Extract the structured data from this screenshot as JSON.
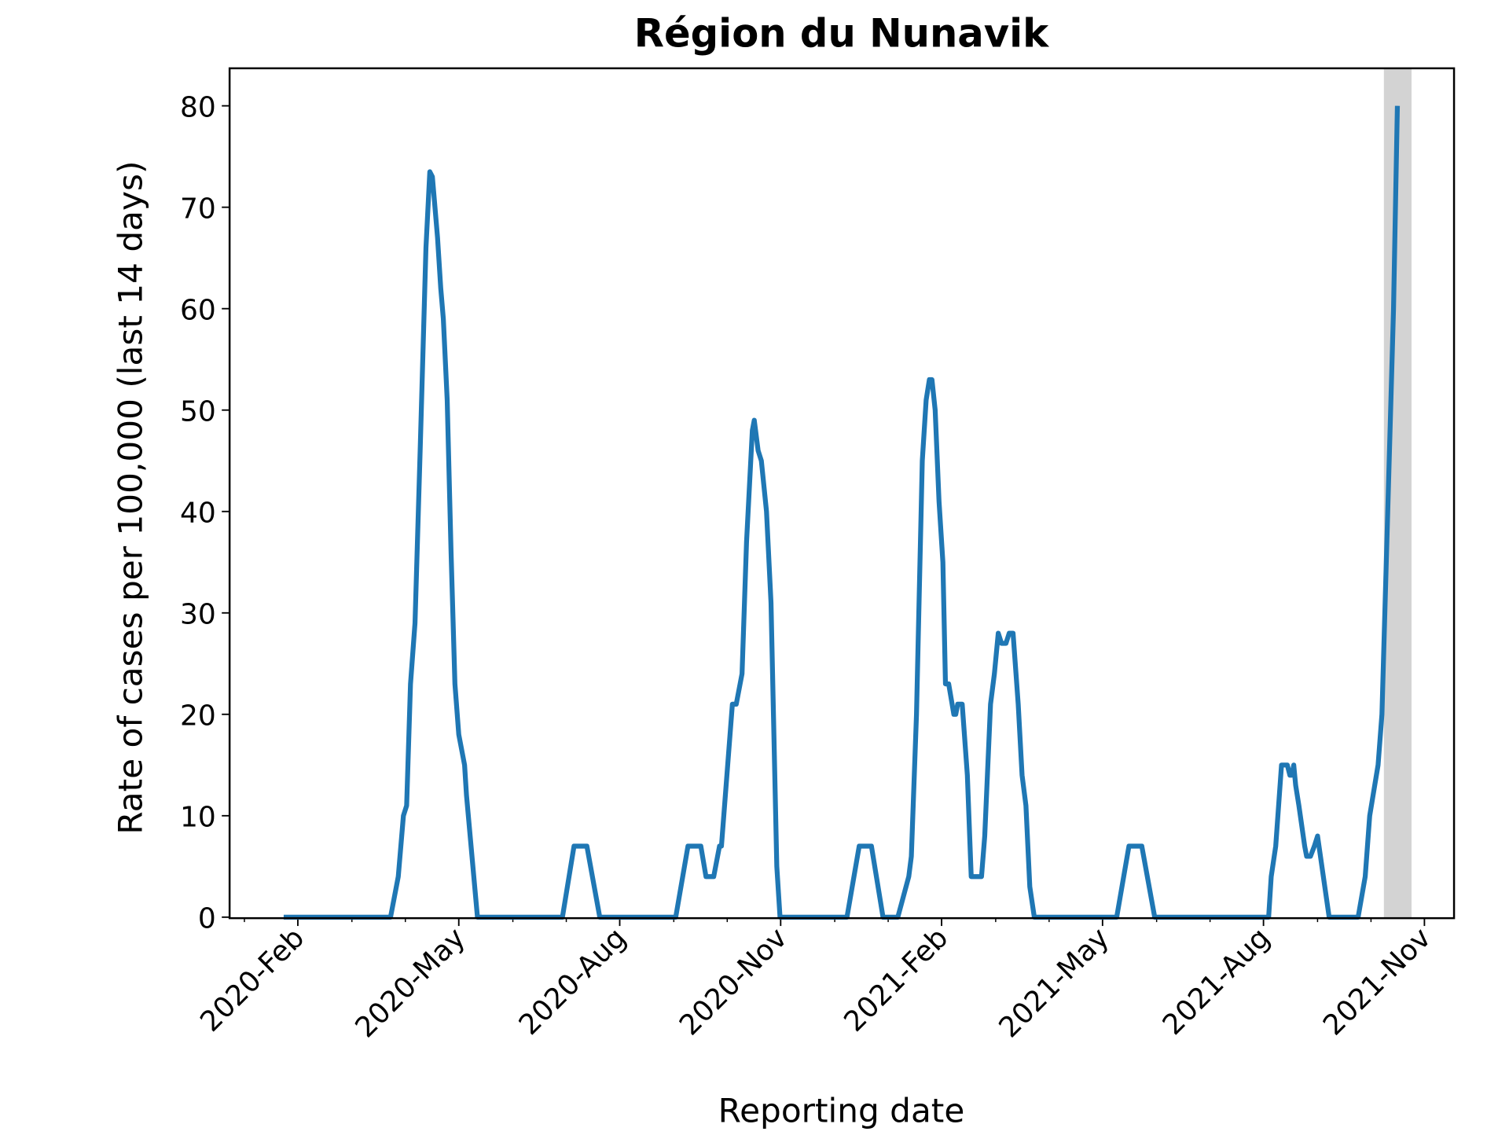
{
  "chart_data": {
    "type": "line",
    "title": "Région du Nunavik",
    "x_label": "Reporting date",
    "y_label": "Rate of cases per 100,000 (last 14 days)",
    "x": [
      2020.061,
      2020.227,
      2020.239,
      2020.247,
      2020.252,
      2020.258,
      2020.265,
      2020.273,
      2020.282,
      2020.288,
      2020.292,
      2020.3,
      2020.305,
      2020.309,
      2020.315,
      2020.321,
      2020.327,
      2020.333,
      2020.342,
      2020.345,
      2020.362,
      2020.494,
      2020.512,
      2020.532,
      2020.552,
      2020.67,
      2020.689,
      2020.709,
      2020.717,
      2020.729,
      2020.738,
      2020.741,
      2020.758,
      2020.764,
      2020.773,
      2020.78,
      2020.789,
      2020.792,
      2020.798,
      2020.803,
      2020.811,
      2020.818,
      2020.827,
      2020.832,
      2020.936,
      2020.955,
      2020.974,
      2020.992,
      2021.015,
      2021.032,
      2021.036,
      2021.044,
      2021.053,
      2021.059,
      2021.064,
      2021.068,
      2021.073,
      2021.079,
      2021.085,
      2021.089,
      2021.094,
      2021.102,
      2021.105,
      2021.108,
      2021.115,
      2021.123,
      2021.129,
      2021.145,
      2021.15,
      2021.159,
      2021.165,
      2021.171,
      2021.176,
      2021.183,
      2021.188,
      2021.194,
      2021.202,
      2021.208,
      2021.214,
      2021.22,
      2021.227,
      2021.355,
      2021.374,
      2021.394,
      2021.414,
      2021.591,
      2021.595,
      2021.602,
      2021.611,
      2021.62,
      2021.624,
      2021.627,
      2021.63,
      2021.633,
      2021.638,
      2021.647,
      2021.65,
      2021.656,
      2021.662,
      2021.667,
      2021.685,
      2021.7,
      2021.73,
      2021.741,
      2021.748,
      2021.761,
      2021.767,
      2021.776,
      2021.785,
      2021.791
    ],
    "series": [
      {
        "name": "Rate",
        "color": "#1f77b4",
        "values": [
          0,
          0,
          4,
          10,
          11,
          23,
          29,
          46,
          66,
          73.5,
          73,
          67,
          62,
          59,
          51,
          36,
          23,
          18,
          15,
          12,
          0,
          0,
          7,
          7,
          0,
          0,
          7,
          7,
          4,
          4,
          7,
          7,
          21,
          21,
          24,
          37,
          48,
          49,
          46,
          45,
          40,
          31,
          5,
          0,
          0,
          7,
          7,
          0,
          0,
          4,
          6,
          20,
          45,
          51,
          53,
          53,
          50,
          41,
          35,
          23,
          23,
          20,
          20,
          21,
          21,
          14,
          4,
          4,
          8,
          21,
          24,
          28,
          27,
          27,
          28,
          28,
          21,
          14,
          11,
          3,
          0,
          0,
          7,
          7,
          0,
          0,
          4,
          7,
          15,
          15,
          14,
          14,
          15,
          13,
          11,
          7,
          6,
          6,
          7,
          8,
          0,
          0,
          0,
          4,
          10,
          15,
          20,
          40,
          60,
          80
        ]
      }
    ],
    "shade": [
      2021.77,
      2021.813
    ],
    "shade_color": "#d3d3d3",
    "xlim": [
      2019.977,
      2021.879
    ],
    "ylim": [
      -0.1,
      83.7
    ],
    "xticks": [
      {
        "value": 2020.083,
        "label": "2020-Feb"
      },
      {
        "value": 2020.333,
        "label": "2020-May"
      },
      {
        "value": 2020.583,
        "label": "2020-Aug"
      },
      {
        "value": 2020.833,
        "label": "2020-Nov"
      },
      {
        "value": 2021.083,
        "label": "2021-Feb"
      },
      {
        "value": 2021.333,
        "label": "2021-May"
      },
      {
        "value": 2021.583,
        "label": "2021-Aug"
      },
      {
        "value": 2021.833,
        "label": "2021-Nov"
      }
    ],
    "xminorticks": [
      2020.0,
      2020.167,
      2020.25,
      2020.417,
      2020.5,
      2020.667,
      2020.75,
      2020.917,
      2021.0,
      2021.167,
      2021.25,
      2021.417,
      2021.5,
      2021.667,
      2021.75
    ],
    "yticks": [
      0,
      10,
      20,
      30,
      40,
      50,
      60,
      70,
      80
    ]
  }
}
